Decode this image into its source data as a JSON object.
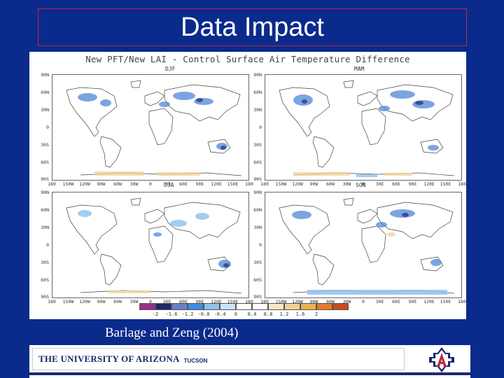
{
  "slide": {
    "title": "Data Impact",
    "citation": "Barlage and Zeng (2004)"
  },
  "figure": {
    "title": "New PFT/New LAI - Control Surface Air Temperature Difference",
    "panels": [
      {
        "label": "DJF"
      },
      {
        "label": "MAM"
      },
      {
        "label": "JJA"
      },
      {
        "label": "SON"
      }
    ],
    "lat_labels": [
      "90N",
      "60N",
      "30N",
      "0",
      "30S",
      "60S",
      "90S"
    ],
    "lon_labels": [
      "180",
      "150W",
      "120W",
      "90W",
      "60W",
      "30W",
      "0",
      "30E",
      "60E",
      "90E",
      "120E",
      "150E",
      "180"
    ],
    "colorbar": {
      "labels": [
        "-2",
        "-1.6",
        "-1.2",
        "-0.8",
        "-0.4",
        "0",
        "0.4",
        "0.8",
        "1.2",
        "1.6",
        "2"
      ],
      "colors": [
        "#9b2f86",
        "#1a2a6b",
        "#6a7fc9",
        "#3c8ee0",
        "#8fc0ee",
        "#cde3f7",
        "#ffffff",
        "#ffffff",
        "#f7e6c4",
        "#f2d296",
        "#eab34a",
        "#e87a2a",
        "#cc4a1c"
      ]
    }
  },
  "footer": {
    "university_name": "THE UNIVERSITY OF ARIZONA",
    "city": "TUCSON",
    "brand_colors": {
      "navy": "#1a2a6b",
      "red": "#c0273a"
    }
  }
}
